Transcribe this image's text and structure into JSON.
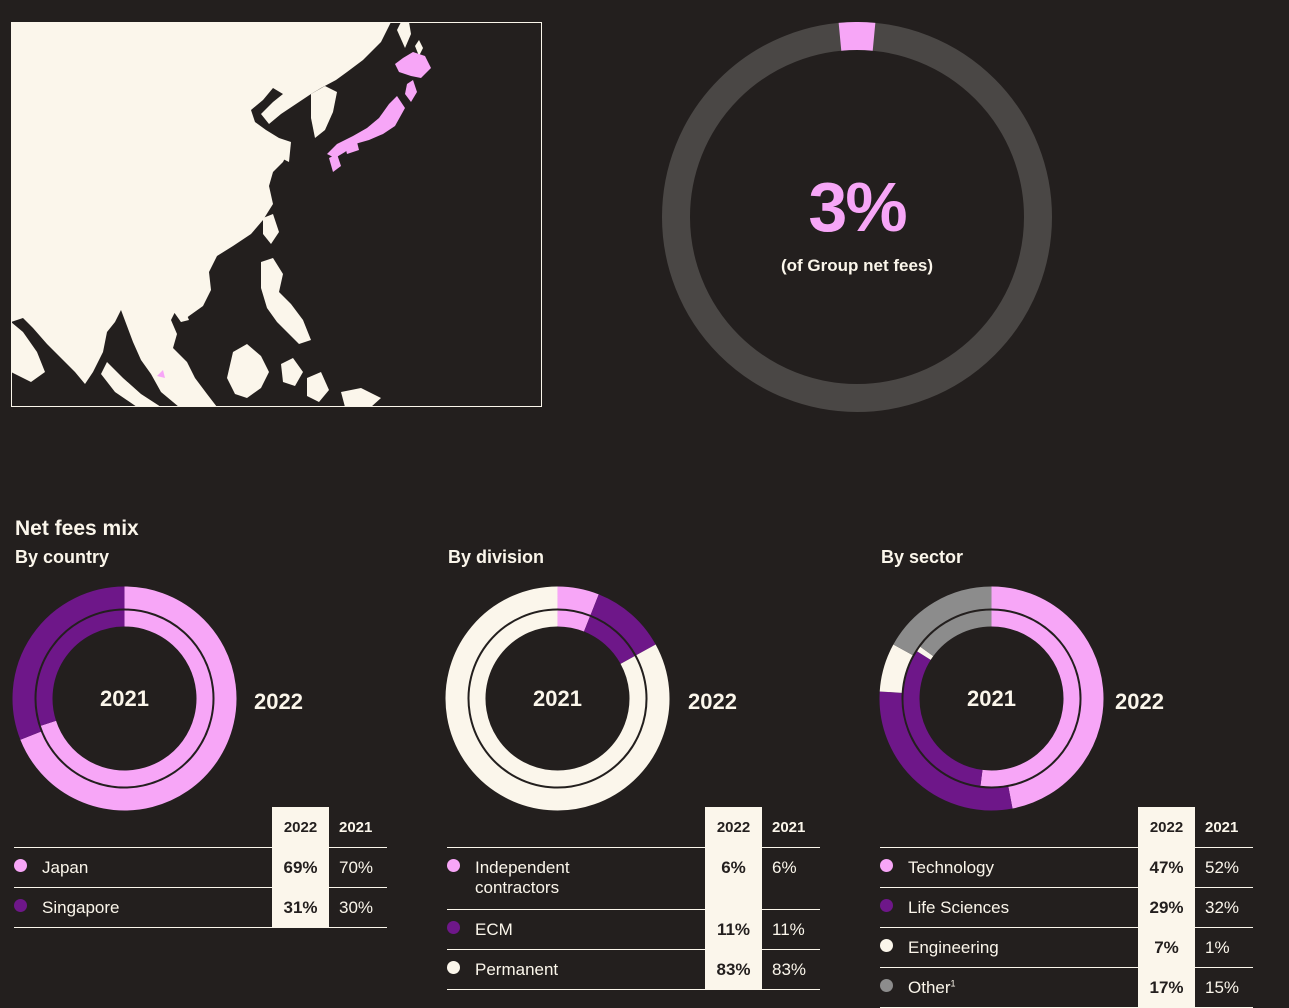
{
  "colors": {
    "background": "#231f1e",
    "cream": "#fbf6eb",
    "pink": "#f7a6f7",
    "purple": "#6e1789",
    "grey": "#8c8c8c",
    "ring_dark": "#4a4745"
  },
  "group_share": {
    "value": "3%",
    "caption": "(of Group net fees)",
    "fraction": 0.03
  },
  "net_fees_mix": {
    "title": "Net fees mix"
  },
  "chart_data": [
    {
      "type": "pie",
      "title": "By country",
      "outer_label": "2022",
      "inner_label": "2021",
      "headers": {
        "y2022": "2022",
        "y2021": "2021"
      },
      "categories": [
        "Japan",
        "Singapore"
      ],
      "colors": [
        "#f7a6f7",
        "#6e1789"
      ],
      "series": [
        {
          "name": "2022",
          "values": [
            69,
            31
          ],
          "labels": [
            "69%",
            "31%"
          ]
        },
        {
          "name": "2021",
          "values": [
            70,
            30
          ],
          "labels": [
            "70%",
            "30%"
          ]
        }
      ]
    },
    {
      "type": "pie",
      "title": "By division",
      "outer_label": "2022",
      "inner_label": "2021",
      "headers": {
        "y2022": "2022",
        "y2021": "2021"
      },
      "categories": [
        "Independent contractors",
        "ECM",
        "Permanent"
      ],
      "label_lines": [
        [
          "Independent",
          "contractors"
        ],
        [
          "ECM"
        ],
        [
          "Permanent"
        ]
      ],
      "colors": [
        "#f7a6f7",
        "#6e1789",
        "#fbf6eb"
      ],
      "series": [
        {
          "name": "2022",
          "values": [
            6,
            11,
            83
          ],
          "labels": [
            "6%",
            "11%",
            "83%"
          ]
        },
        {
          "name": "2021",
          "values": [
            6,
            11,
            83
          ],
          "labels": [
            "6%",
            "11%",
            "83%"
          ]
        }
      ]
    },
    {
      "type": "pie",
      "title": "By sector",
      "outer_label": "2022",
      "inner_label": "2021",
      "headers": {
        "y2022": "2022",
        "y2021": "2021"
      },
      "categories": [
        "Technology",
        "Life Sciences",
        "Engineering",
        "Other"
      ],
      "footnote_marks": [
        "",
        "",
        "",
        "1"
      ],
      "colors": [
        "#f7a6f7",
        "#6e1789",
        "#fbf6eb",
        "#8c8c8c"
      ],
      "series": [
        {
          "name": "2022",
          "values": [
            47,
            29,
            7,
            17
          ],
          "labels": [
            "47%",
            "29%",
            "7%",
            "17%"
          ]
        },
        {
          "name": "2021",
          "values": [
            52,
            32,
            1,
            15
          ],
          "labels": [
            "52%",
            "32%",
            "1%",
            "15%"
          ]
        }
      ]
    }
  ]
}
